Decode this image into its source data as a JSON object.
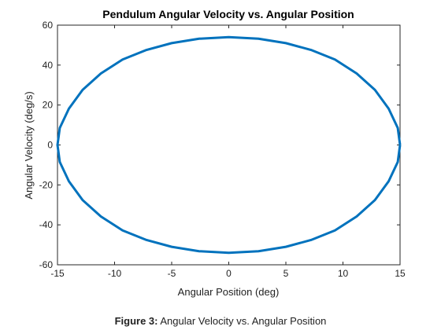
{
  "chart_data": {
    "type": "line",
    "title": "Pendulum Angular Velocity vs. Angular Position",
    "xlabel": "Angular Position (deg)",
    "ylabel": "Angular Velocity (deg/s)",
    "xlim": [
      -15,
      15
    ],
    "ylim": [
      -60,
      60
    ],
    "xticks": [
      -15,
      -10,
      -5,
      0,
      5,
      10,
      15
    ],
    "yticks": [
      -60,
      -40,
      -20,
      0,
      20,
      40,
      60
    ],
    "grid": false,
    "series": [
      {
        "color": "#0072BD",
        "x": [
          15.0,
          14.8,
          14.0,
          12.8,
          11.2,
          9.3,
          7.2,
          5.0,
          2.6,
          0.0,
          -2.6,
          -5.0,
          -7.2,
          -9.3,
          -11.2,
          -12.8,
          -14.0,
          -14.8,
          -15.0,
          -14.8,
          -14.0,
          -12.8,
          -11.2,
          -9.3,
          -7.2,
          -5.0,
          -2.6,
          0.0,
          2.6,
          5.0,
          7.2,
          9.3,
          11.2,
          12.8,
          14.0,
          14.8,
          15.0
        ],
        "y": [
          0,
          8.5,
          18.2,
          27.6,
          35.8,
          42.8,
          47.6,
          51.0,
          53.2,
          54.0,
          53.2,
          51.0,
          47.6,
          42.8,
          35.8,
          27.6,
          18.2,
          8.5,
          0,
          -8.5,
          -18.2,
          -27.6,
          -35.8,
          -42.8,
          -47.6,
          -51.0,
          -53.2,
          -54.0,
          -53.2,
          -51.0,
          -47.6,
          -42.8,
          -35.8,
          -27.6,
          -18.2,
          -8.5,
          0
        ]
      }
    ]
  },
  "caption": {
    "label": "Figure 3:",
    "text": "Angular Velocity vs. Angular Position"
  }
}
